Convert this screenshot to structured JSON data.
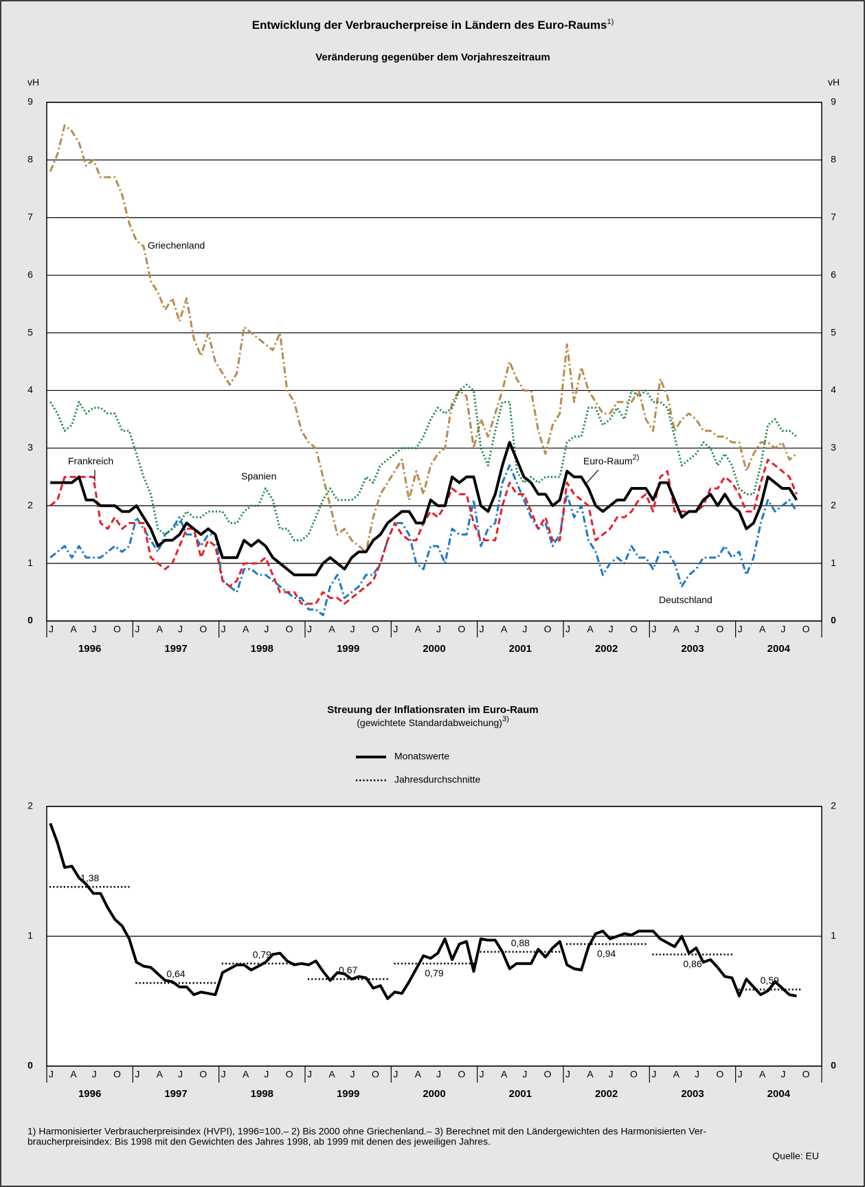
{
  "chart_data": [
    {
      "type": "line",
      "title": "Entwicklung der Verbraucherpreise in Ländern des Euro-Raums",
      "title_note": "1)",
      "subtitle": "Veränderung gegenüber dem Vorjahreszeitraum",
      "ylabel": "vH",
      "y2label": "vH",
      "ylim": [
        0,
        9
      ],
      "yticks": [
        0,
        1,
        2,
        3,
        4,
        5,
        6,
        7,
        8,
        9
      ],
      "y2lim": [
        0,
        9
      ],
      "y2ticks": [
        0,
        1,
        2,
        3,
        4,
        5,
        6,
        7,
        8,
        9
      ],
      "grid": true,
      "quarter_labels": [
        "J",
        "A",
        "J",
        "O"
      ],
      "years": [
        "1996",
        "1997",
        "1998",
        "1999",
        "2000",
        "2001",
        "2002",
        "2003",
        "2004"
      ],
      "series": [
        {
          "name": "Euro-Raum",
          "note": "2)",
          "color": "#000000",
          "style": "solid",
          "values": [
            2.4,
            2.4,
            2.4,
            2.4,
            2.5,
            2.1,
            2.1,
            2.0,
            2.0,
            2.0,
            1.9,
            1.9,
            2.0,
            1.8,
            1.6,
            1.3,
            1.4,
            1.4,
            1.5,
            1.7,
            1.6,
            1.5,
            1.6,
            1.5,
            1.1,
            1.1,
            1.1,
            1.4,
            1.3,
            1.4,
            1.3,
            1.1,
            1.0,
            0.9,
            0.8,
            0.8,
            0.8,
            0.8,
            1.0,
            1.1,
            1.0,
            0.9,
            1.1,
            1.2,
            1.2,
            1.4,
            1.5,
            1.7,
            1.8,
            1.9,
            1.9,
            1.7,
            1.7,
            2.1,
            2.0,
            2.0,
            2.5,
            2.4,
            2.5,
            2.5,
            2.0,
            1.9,
            2.2,
            2.7,
            3.1,
            2.8,
            2.5,
            2.4,
            2.2,
            2.2,
            2.0,
            2.1,
            2.6,
            2.5,
            2.5,
            2.3,
            2.0,
            1.9,
            2.0,
            2.1,
            2.1,
            2.3,
            2.3,
            2.3,
            2.1,
            2.4,
            2.4,
            2.1,
            1.8,
            1.9,
            1.9,
            2.1,
            2.2,
            2.0,
            2.2,
            2.0,
            1.9,
            1.6,
            1.7,
            2.0,
            2.5,
            2.4,
            2.3,
            2.3,
            2.1
          ]
        },
        {
          "name": "Frankreich",
          "color": "#e3202a",
          "style": "dashed",
          "values": [
            2.0,
            2.1,
            2.5,
            2.5,
            2.5,
            2.5,
            2.5,
            1.7,
            1.6,
            1.8,
            1.6,
            1.7,
            1.7,
            1.7,
            1.1,
            1.0,
            0.9,
            1.0,
            1.3,
            1.6,
            1.6,
            1.1,
            1.4,
            1.3,
            0.7,
            0.6,
            0.7,
            1.0,
            1.0,
            1.0,
            1.1,
            0.8,
            0.5,
            0.5,
            0.5,
            0.3,
            0.3,
            0.3,
            0.5,
            0.4,
            0.4,
            0.3,
            0.4,
            0.5,
            0.6,
            0.7,
            1.0,
            1.4,
            1.7,
            1.5,
            1.4,
            1.4,
            1.7,
            1.9,
            1.8,
            2.0,
            2.3,
            2.2,
            2.2,
            1.7,
            1.4,
            1.4,
            1.4,
            2.0,
            2.4,
            2.2,
            2.2,
            1.9,
            1.6,
            1.8,
            1.4,
            1.4,
            2.4,
            2.2,
            2.1,
            2.0,
            1.4,
            1.5,
            1.6,
            1.8,
            1.8,
            1.9,
            2.1,
            2.2,
            1.9,
            2.5,
            2.6,
            1.9,
            1.9,
            1.9,
            1.9,
            2.0,
            2.3,
            2.3,
            2.5,
            2.4,
            2.2,
            1.9,
            1.9,
            2.4,
            2.8,
            2.7,
            2.6,
            2.5,
            2.2
          ]
        },
        {
          "name": "Spanien",
          "color": "#1e8a4c",
          "style": "dotted",
          "values": [
            3.8,
            3.6,
            3.3,
            3.4,
            3.8,
            3.6,
            3.7,
            3.7,
            3.6,
            3.6,
            3.3,
            3.3,
            2.9,
            2.5,
            2.2,
            1.6,
            1.5,
            1.6,
            1.7,
            1.9,
            1.8,
            1.8,
            1.9,
            1.9,
            1.9,
            1.7,
            1.7,
            1.9,
            2.0,
            2.0,
            2.3,
            2.1,
            1.6,
            1.6,
            1.4,
            1.4,
            1.5,
            1.8,
            2.1,
            2.3,
            2.1,
            2.1,
            2.1,
            2.2,
            2.5,
            2.4,
            2.7,
            2.8,
            2.9,
            3.0,
            3.0,
            3.0,
            3.2,
            3.5,
            3.7,
            3.6,
            3.7,
            4.0,
            4.1,
            4.0,
            3.0,
            2.7,
            3.3,
            3.8,
            3.8,
            2.6,
            2.4,
            2.5,
            2.4,
            2.5,
            2.5,
            2.5,
            3.1,
            3.2,
            3.2,
            3.7,
            3.7,
            3.4,
            3.5,
            3.7,
            3.5,
            4.0,
            3.9,
            4.0,
            3.8,
            3.8,
            3.7,
            3.2,
            2.7,
            2.8,
            2.9,
            3.1,
            3.0,
            2.7,
            2.9,
            2.7,
            2.3,
            2.2,
            2.2,
            2.7,
            3.4,
            3.5,
            3.3,
            3.3,
            3.2
          ]
        },
        {
          "name": "Griechenland",
          "color": "#b98a4e",
          "style": "dashdot",
          "values": [
            7.8,
            8.1,
            8.6,
            8.5,
            8.3,
            7.9,
            8.0,
            7.7,
            7.7,
            7.7,
            7.4,
            6.9,
            6.6,
            6.5,
            5.9,
            5.7,
            5.4,
            5.6,
            5.2,
            5.6,
            4.9,
            4.6,
            5.0,
            4.5,
            4.3,
            4.1,
            4.3,
            5.1,
            5.0,
            4.9,
            4.8,
            4.7,
            5.0,
            4.0,
            3.8,
            3.3,
            3.1,
            3.0,
            2.5,
            2.0,
            1.5,
            1.6,
            1.4,
            1.3,
            1.2,
            1.8,
            2.2,
            2.4,
            2.6,
            2.8,
            2.1,
            2.6,
            2.2,
            2.7,
            2.9,
            3.0,
            3.8,
            4.0,
            3.9,
            3.0,
            3.5,
            3.2,
            3.6,
            4.0,
            4.5,
            4.2,
            4.0,
            4.0,
            3.3,
            2.9,
            3.4,
            3.6,
            4.8,
            3.8,
            4.4,
            4.0,
            3.8,
            3.6,
            3.6,
            3.8,
            3.8,
            3.8,
            4.0,
            3.5,
            3.3,
            4.2,
            3.9,
            3.3,
            3.5,
            3.6,
            3.5,
            3.3,
            3.3,
            3.2,
            3.2,
            3.1,
            3.1,
            2.6,
            2.9,
            3.1,
            3.1,
            3.0,
            3.1,
            2.8,
            2.9
          ]
        },
        {
          "name": "Deutschland",
          "color": "#1e78c4",
          "style": "dashdot",
          "values": [
            1.1,
            1.2,
            1.3,
            1.1,
            1.3,
            1.1,
            1.1,
            1.1,
            1.2,
            1.3,
            1.2,
            1.3,
            1.8,
            1.6,
            1.4,
            1.2,
            1.5,
            1.6,
            1.8,
            1.5,
            1.5,
            1.3,
            1.5,
            1.5,
            0.7,
            0.6,
            0.5,
            0.9,
            0.9,
            0.8,
            0.8,
            0.7,
            0.6,
            0.5,
            0.4,
            0.4,
            0.2,
            0.2,
            0.1,
            0.6,
            0.8,
            0.4,
            0.5,
            0.6,
            0.8,
            0.8,
            1.0,
            1.4,
            1.7,
            1.7,
            1.5,
            1.0,
            0.9,
            1.3,
            1.3,
            1.0,
            1.6,
            1.5,
            1.5,
            2.1,
            1.3,
            1.6,
            1.7,
            2.4,
            2.7,
            2.4,
            2.1,
            1.8,
            1.6,
            1.7,
            1.3,
            1.5,
            2.2,
            1.8,
            2.0,
            1.4,
            1.2,
            0.8,
            1.0,
            1.1,
            1.0,
            1.3,
            1.1,
            1.1,
            0.9,
            1.2,
            1.2,
            1.0,
            0.6,
            0.8,
            0.9,
            1.1,
            1.1,
            1.1,
            1.3,
            1.1,
            1.2,
            0.8,
            1.1,
            1.7,
            2.1,
            1.9,
            2.0,
            2.1,
            1.9
          ]
        }
      ]
    },
    {
      "type": "line",
      "title": "Streuung der Inflationsraten im Euro-Raum",
      "subtitle": "(gewichtete Standardabweichung)",
      "subtitle_note": "3)",
      "ylim": [
        0,
        2
      ],
      "yticks": [
        0,
        1,
        2
      ],
      "y2lim": [
        0,
        2
      ],
      "y2ticks": [
        0,
        1,
        2
      ],
      "grid": true,
      "quarter_labels": [
        "J",
        "A",
        "J",
        "O"
      ],
      "years": [
        "1996",
        "1997",
        "1998",
        "1999",
        "2000",
        "2001",
        "2002",
        "2003",
        "2004"
      ],
      "series": [
        {
          "name": "Monatswerte",
          "color": "#000000",
          "style": "solid",
          "values": [
            1.87,
            1.72,
            1.53,
            1.54,
            1.45,
            1.4,
            1.33,
            1.33,
            1.22,
            1.13,
            1.08,
            0.98,
            0.8,
            0.77,
            0.76,
            0.71,
            0.66,
            0.65,
            0.61,
            0.61,
            0.55,
            0.57,
            0.56,
            0.55,
            0.72,
            0.75,
            0.78,
            0.78,
            0.74,
            0.77,
            0.8,
            0.86,
            0.87,
            0.81,
            0.78,
            0.79,
            0.78,
            0.81,
            0.73,
            0.66,
            0.72,
            0.71,
            0.67,
            0.69,
            0.68,
            0.6,
            0.62,
            0.52,
            0.57,
            0.56,
            0.65,
            0.75,
            0.85,
            0.83,
            0.87,
            0.98,
            0.82,
            0.94,
            0.96,
            0.73,
            0.98,
            0.97,
            0.97,
            0.88,
            0.75,
            0.79,
            0.79,
            0.79,
            0.9,
            0.84,
            0.91,
            0.96,
            0.78,
            0.75,
            0.74,
            0.92,
            1.02,
            1.04,
            0.98,
            1.0,
            1.02,
            1.01,
            1.04,
            1.04,
            1.04,
            0.98,
            0.95,
            0.92,
            1.0,
            0.87,
            0.91,
            0.8,
            0.82,
            0.76,
            0.69,
            0.68,
            0.54,
            0.67,
            0.61,
            0.55,
            0.58,
            0.65,
            0.6,
            0.55,
            0.54
          ]
        }
      ],
      "annual_averages": {
        "name": "Jahresdurchschnitte",
        "color": "#000000",
        "style": "dotted",
        "values": [
          1.38,
          0.64,
          0.79,
          0.67,
          0.79,
          0.88,
          0.94,
          0.86,
          0.59
        ],
        "value_labels": [
          "1,38",
          "0,64",
          "0,79",
          "0,67",
          "0,79",
          "0,88",
          "0,94",
          "0,86",
          "0,59"
        ]
      }
    }
  ],
  "footnotes": [
    "1) Harmonisierter Verbraucherpreisindex (HVPI), 1996=100.– 2) Bis 2000 ohne Griechenland.– 3) Berechnet mit den Ländergewichten des Harmonisierten Ver-",
    "braucherpreisindex: Bis 1998 mit den Gewichten des Jahres 1998, ab 1999 mit denen des jeweiligen Jahres."
  ],
  "source": "Quelle: EU"
}
